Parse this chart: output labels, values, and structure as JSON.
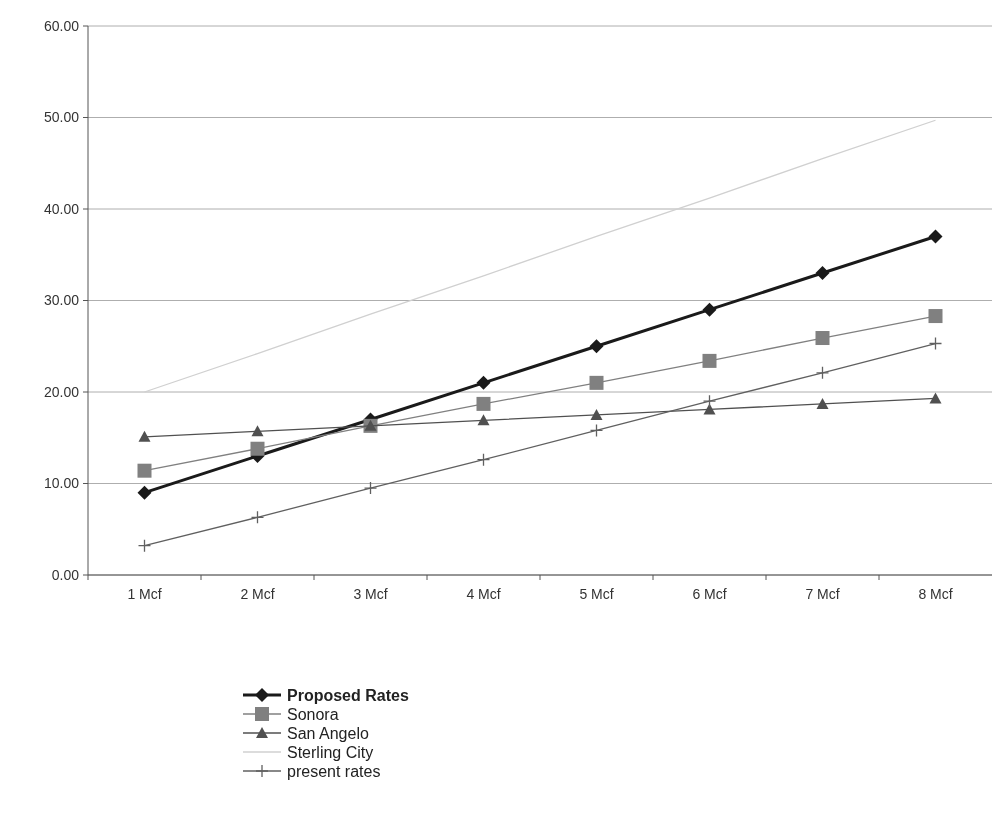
{
  "chart_data": {
    "type": "line",
    "categories": [
      "1 Mcf",
      "2 Mcf",
      "3 Mcf",
      "4 Mcf",
      "5 Mcf",
      "6 Mcf",
      "7 Mcf",
      "8 Mcf"
    ],
    "series": [
      {
        "name": "Proposed Rates",
        "color": "#1a1a1a",
        "marker": "diamond",
        "values": [
          9.0,
          13.0,
          17.0,
          21.0,
          25.0,
          29.0,
          33.0,
          37.0
        ]
      },
      {
        "name": "Sonora",
        "color": "#808080",
        "marker": "square",
        "values": [
          11.4,
          13.8,
          16.3,
          18.7,
          21.0,
          23.4,
          25.9,
          28.3
        ]
      },
      {
        "name": "San Angelo",
        "color": "#505050",
        "marker": "triangle",
        "values": [
          15.1,
          15.7,
          16.3,
          16.9,
          17.5,
          18.1,
          18.7,
          19.3
        ]
      },
      {
        "name": "Sterling City",
        "color": "#d0d0d0",
        "marker": "none",
        "values": [
          20.0,
          24.2,
          28.5,
          32.7,
          37.0,
          41.2,
          45.5,
          49.7
        ]
      },
      {
        "name": "present rates",
        "color": "#606060",
        "marker": "cross",
        "values": [
          3.2,
          6.3,
          9.5,
          12.6,
          15.8,
          19.0,
          22.1,
          25.3
        ]
      }
    ],
    "ylim": [
      0,
      60
    ],
    "yticks": [
      {
        "value": 0,
        "label": "0.00"
      },
      {
        "value": 10,
        "label": "10.00"
      },
      {
        "value": 20,
        "label": "20.00"
      },
      {
        "value": 30,
        "label": "30.00"
      },
      {
        "value": 40,
        "label": "40.00"
      },
      {
        "value": 50,
        "label": "50.00"
      },
      {
        "value": 60,
        "label": "60.00"
      }
    ],
    "grid": "y",
    "legend": "bottom"
  }
}
